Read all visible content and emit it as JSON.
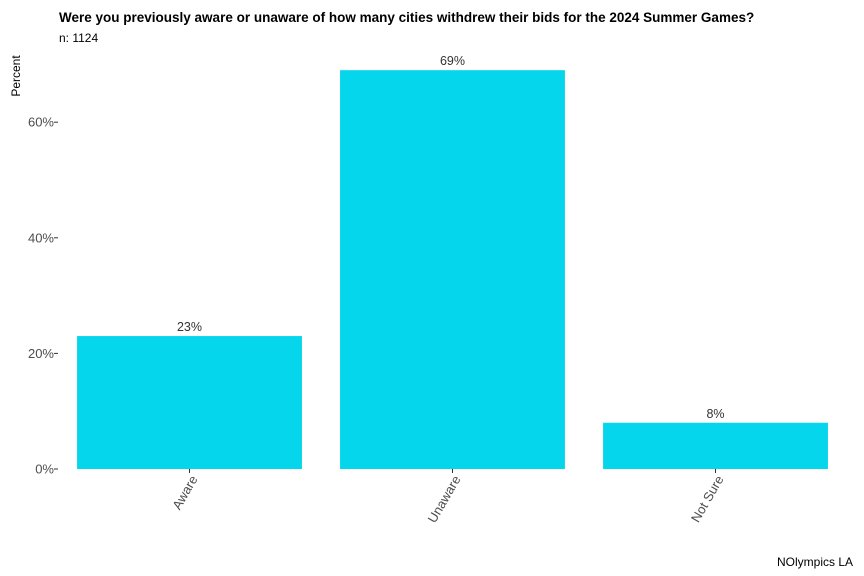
{
  "chart_data": {
    "type": "bar",
    "title": "Were you previously aware or unaware of how many cities withdrew their bids for the 2024 Summer Games?",
    "subtitle": "n: 1124",
    "xlabel": "",
    "ylabel": "Percent",
    "categories": [
      "Aware",
      "Unaware",
      "Not Sure"
    ],
    "values": [
      23,
      69,
      8
    ],
    "data_labels": [
      "23%",
      "69%",
      "8%"
    ],
    "ylim": [
      0,
      69
    ],
    "yticks": [
      0,
      20,
      40,
      60
    ],
    "ytick_labels": [
      "0%",
      "20%",
      "40%",
      "60%"
    ],
    "grid": false,
    "legend": "none",
    "bar_color": "#06D6EB",
    "caption": "NOlympics LA"
  }
}
